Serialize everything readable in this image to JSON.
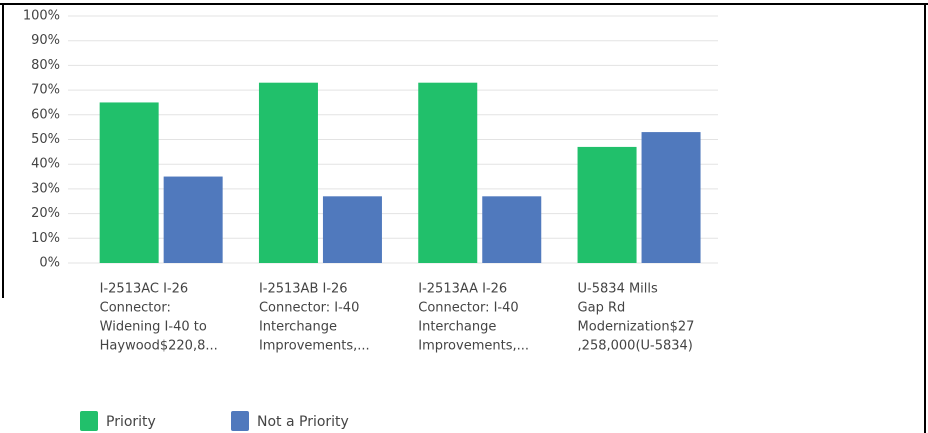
{
  "chart_data": {
    "type": "bar",
    "categories": [
      [
        "I-2513AC I-26",
        "Connector:",
        "Widening I-40 to",
        "Haywood$220,8..."
      ],
      [
        "I-2513AB I-26",
        "Connector: I-40",
        "Interchange",
        "Improvements,..."
      ],
      [
        "I-2513AA I-26",
        "Connector: I-40",
        "Interchange",
        "Improvements,..."
      ],
      [
        "U-5834 Mills",
        "Gap Rd",
        "Modernization$27",
        ",258,000(U-5834)"
      ]
    ],
    "series": [
      {
        "name": "Priority",
        "color": "#21c06b",
        "values": [
          65,
          73,
          73,
          47
        ]
      },
      {
        "name": "Not a Priority",
        "color": "#5079bd",
        "values": [
          35,
          27,
          27,
          53
        ]
      }
    ],
    "ylim": [
      0,
      100
    ],
    "yticks": [
      {
        "value": 0,
        "label": "0%"
      },
      {
        "value": 10,
        "label": "10%"
      },
      {
        "value": 20,
        "label": "20%"
      },
      {
        "value": 30,
        "label": "30%"
      },
      {
        "value": 40,
        "label": "40%"
      },
      {
        "value": 50,
        "label": "50%"
      },
      {
        "value": 60,
        "label": "60%"
      },
      {
        "value": 70,
        "label": "70%"
      },
      {
        "value": 80,
        "label": "80%"
      },
      {
        "value": 90,
        "label": "90%"
      },
      {
        "value": 100,
        "label": "100%"
      }
    ],
    "grid": true
  }
}
